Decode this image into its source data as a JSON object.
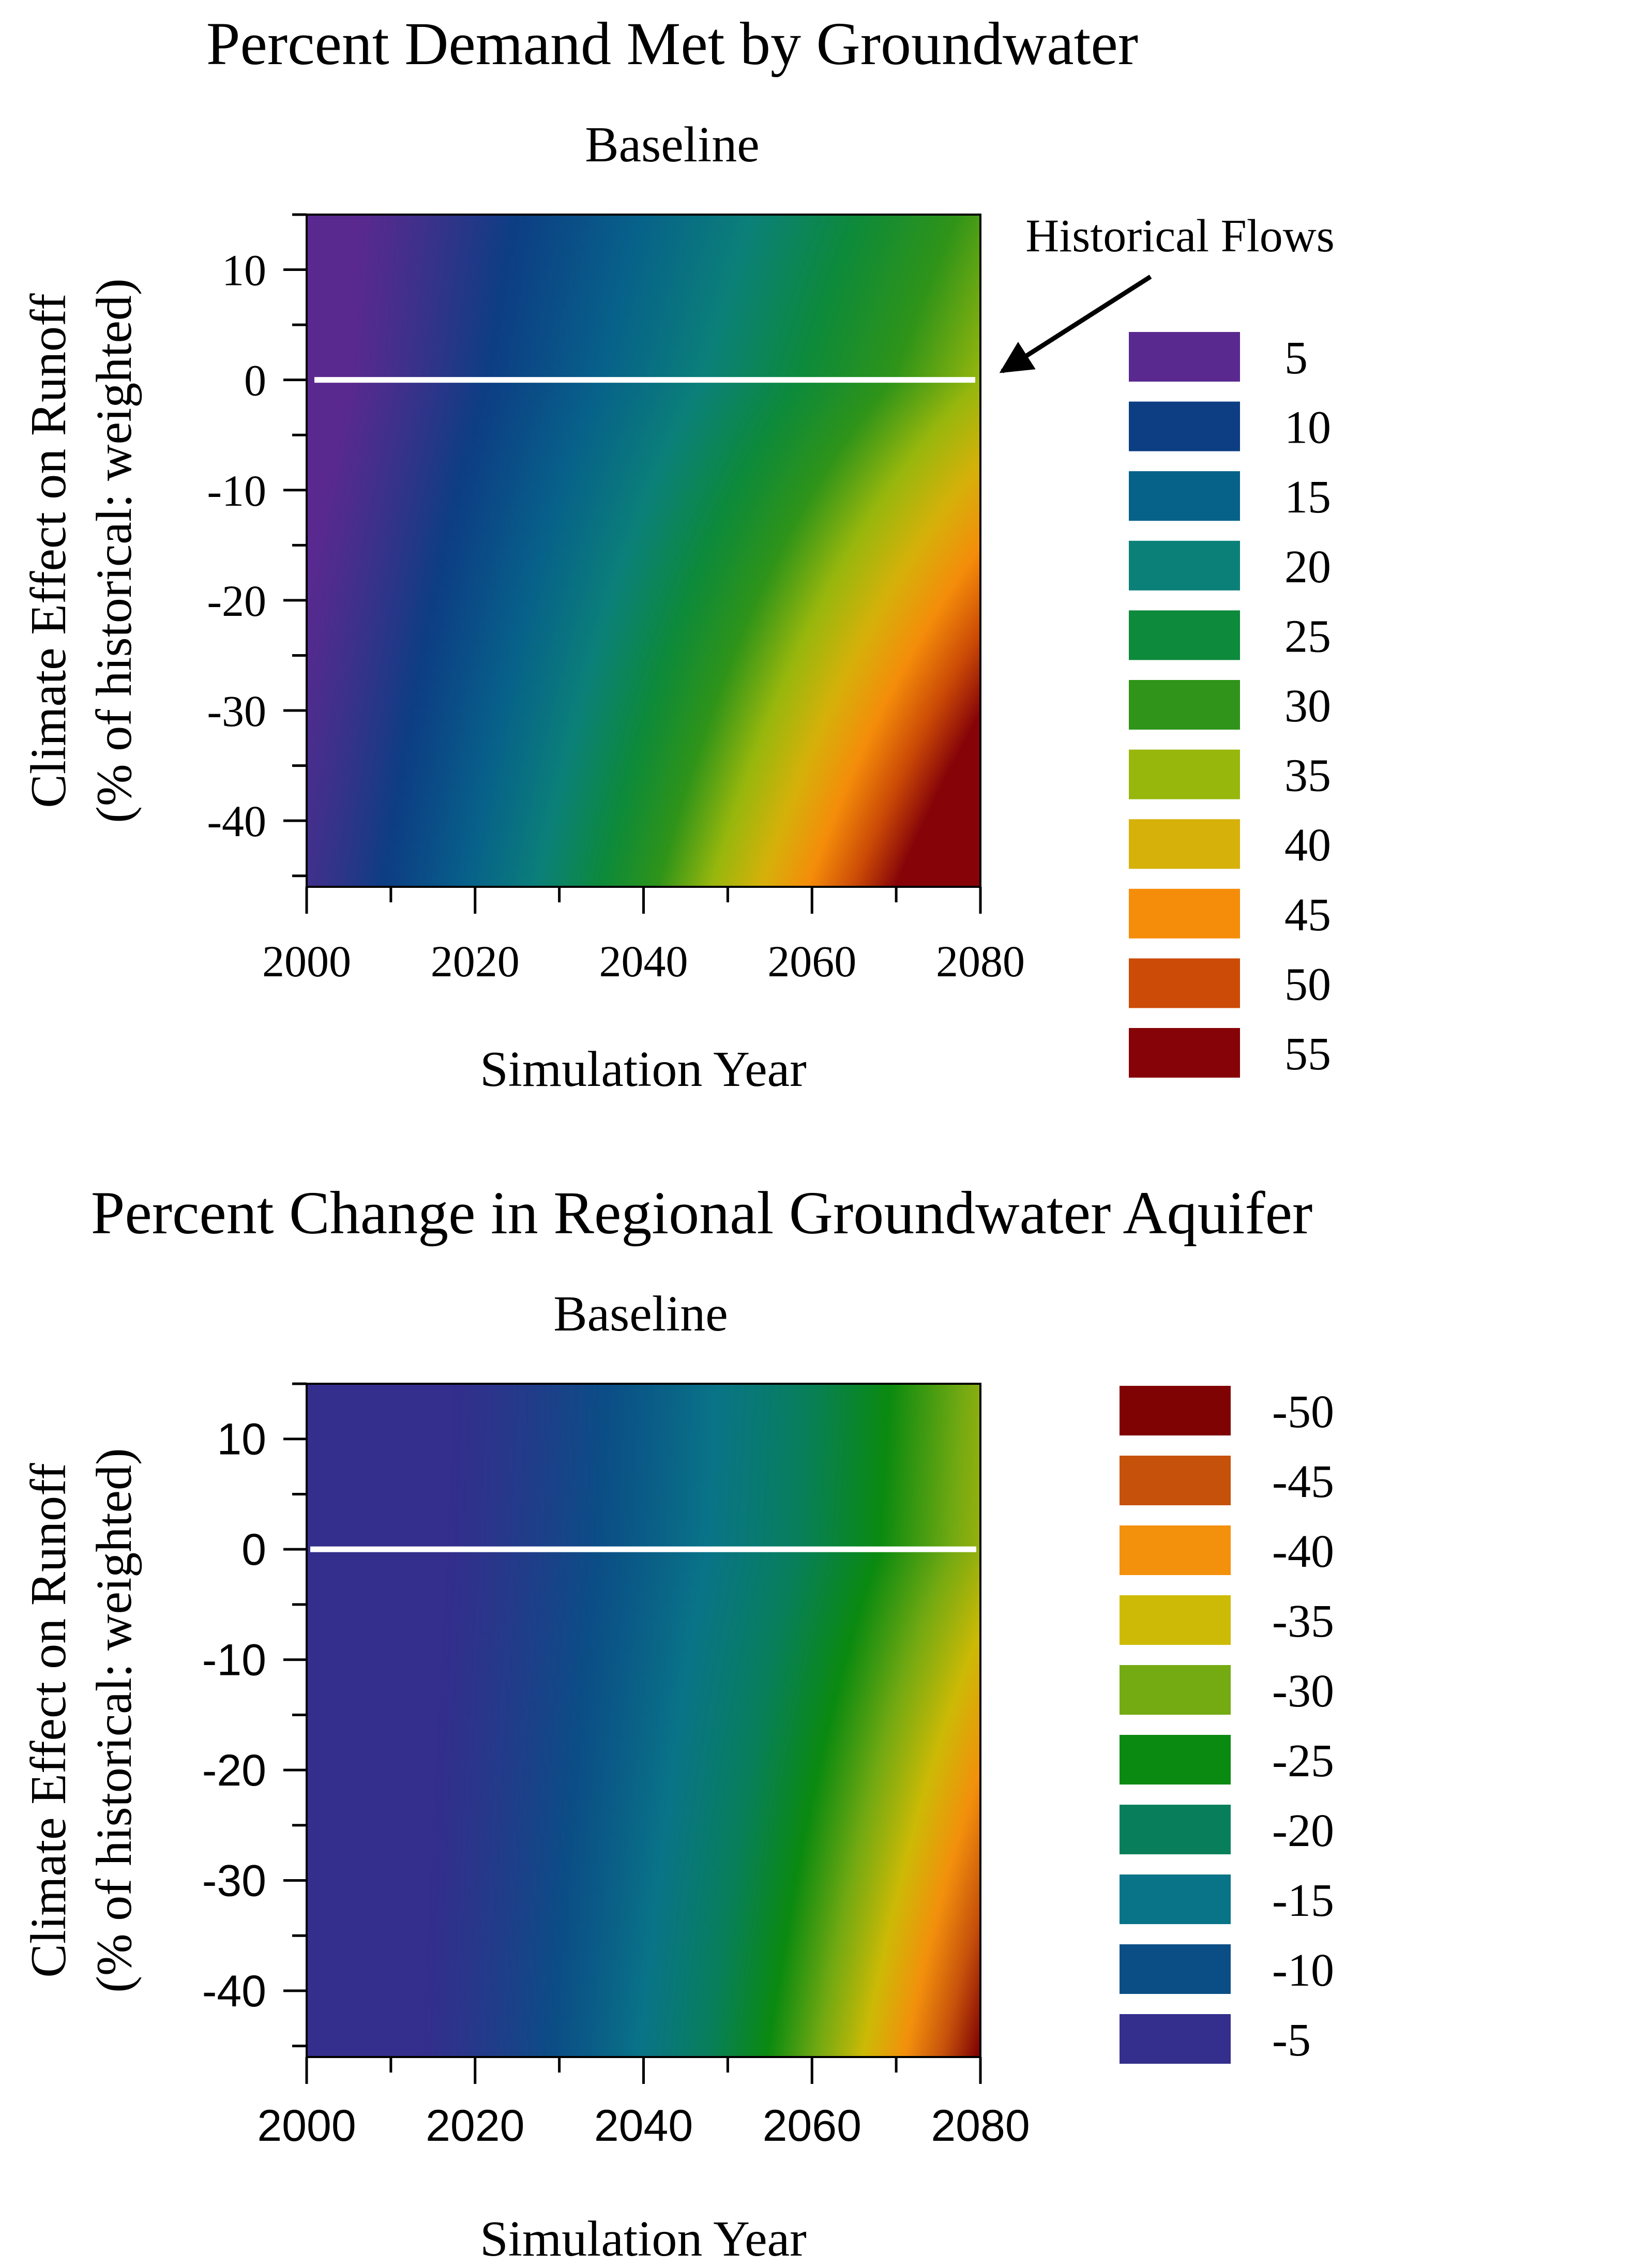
{
  "chart_data": [
    {
      "type": "heatmap",
      "subtype": "filled-contour",
      "title": "Percent Demand Met by Groundwater",
      "subtitle": "Baseline",
      "xlabel": "Simulation Year",
      "ylabel_line1": "Climate Effect on Runoff",
      "ylabel_line2": "(% of historical: weighted)",
      "xlim": [
        2000,
        2080
      ],
      "ylim": [
        -46,
        15
      ],
      "xticks": [
        2000,
        2020,
        2040,
        2060,
        2080
      ],
      "xtick_labels": [
        "2000",
        "2020",
        "2040",
        "2060",
        "2080"
      ],
      "yticks": [
        10,
        0,
        -10,
        -20,
        -30,
        -40
      ],
      "ytick_labels": [
        "10",
        "0",
        "-10",
        "-20",
        "-30",
        "-40"
      ],
      "reference_line_y": 0,
      "annotation": "Historical Flows",
      "legend_position": "right",
      "legend": [
        {
          "label": "5",
          "color": "#5a2990"
        },
        {
          "label": "10",
          "color": "#0d3e84"
        },
        {
          "label": "15",
          "color": "#07628a"
        },
        {
          "label": "20",
          "color": "#0b8079"
        },
        {
          "label": "25",
          "color": "#0d8a3b"
        },
        {
          "label": "30",
          "color": "#2f9419"
        },
        {
          "label": "35",
          "color": "#97b70d"
        },
        {
          "label": "40",
          "color": "#d6b10a"
        },
        {
          "label": "45",
          "color": "#f58d0a"
        },
        {
          "label": "50",
          "color": "#cc4b06"
        },
        {
          "label": "55",
          "color": "#860408"
        }
      ],
      "grid": false
    },
    {
      "type": "heatmap",
      "subtype": "filled-contour",
      "title": "Percent Change in Regional Groundwater Aquifer",
      "subtitle": "Baseline",
      "xlabel": "Simulation Year",
      "ylabel_line1": "Climate Effect on Runoff",
      "ylabel_line2": "(% of historical: weighted)",
      "xlim": [
        2000,
        2080
      ],
      "ylim": [
        -46,
        15
      ],
      "xticks": [
        2000,
        2020,
        2040,
        2060,
        2080
      ],
      "xtick_labels": [
        "2000",
        "2020",
        "2040",
        "2060",
        "2080"
      ],
      "yticks": [
        10,
        0,
        -10,
        -20,
        -30,
        -40
      ],
      "ytick_labels": [
        "10",
        "0",
        "-10",
        "-20",
        "-30",
        "-40"
      ],
      "reference_line_y": 0,
      "legend_position": "right",
      "legend": [
        {
          "label": "-50",
          "color": "#800303"
        },
        {
          "label": "-45",
          "color": "#c6510b"
        },
        {
          "label": "-40",
          "color": "#f3900c"
        },
        {
          "label": "-35",
          "color": "#cdba06"
        },
        {
          "label": "-30",
          "color": "#74aa12"
        },
        {
          "label": "-25",
          "color": "#0a8a10"
        },
        {
          "label": "-20",
          "color": "#087f5a"
        },
        {
          "label": "-15",
          "color": "#097488"
        },
        {
          "label": "-10",
          "color": "#0b4e86"
        },
        {
          "label": "-5",
          "color": "#342e8c"
        }
      ],
      "grid": false
    }
  ]
}
